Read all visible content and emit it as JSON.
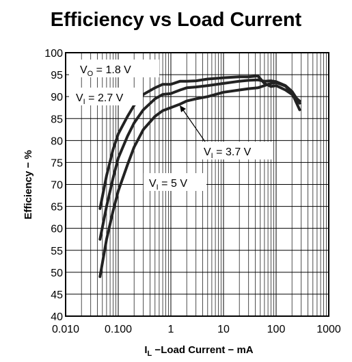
{
  "chart_data": {
    "type": "line",
    "title": "Efficiency vs Load Current",
    "xlabel": {
      "main": "I",
      "sub": "L",
      "rest": " −Load Current − mA"
    },
    "ylabel": "Efficiency − %",
    "x_scale": "log",
    "xlim": [
      0.01,
      1000
    ],
    "ylim": [
      40,
      100
    ],
    "grid": true,
    "x_ticks": [
      0.01,
      0.1,
      1,
      10,
      100,
      1000
    ],
    "x_tick_labels": [
      "0.010",
      "0.100",
      "1",
      "10",
      "100",
      "1000"
    ],
    "y_ticks": [
      40,
      45,
      50,
      55,
      60,
      65,
      70,
      75,
      80,
      85,
      90,
      95,
      100
    ],
    "y_tick_labels": [
      "40",
      "45",
      "50",
      "55",
      "60",
      "65",
      "70",
      "75",
      "80",
      "85",
      "90",
      "95",
      "100"
    ],
    "annotations": [
      {
        "main": "V",
        "sub": "O",
        "rest": " = 1.8 V"
      },
      {
        "main": "V",
        "sub": "I",
        "rest": " = 2.7 V"
      },
      {
        "main": "V",
        "sub": "I",
        "rest": " = 3.7 V"
      },
      {
        "main": "V",
        "sub": "I",
        "rest": " = 5 V"
      }
    ],
    "series": [
      {
        "x": [
          0.045,
          0.06,
          0.08,
          0.1,
          0.15,
          0.2,
          0.3,
          0.5,
          0.7,
          1,
          1.5,
          2,
          3,
          5,
          10,
          20,
          30,
          45,
          60,
          80,
          100,
          150,
          200,
          280
        ],
        "y": [
          64.5,
          72,
          78,
          81.5,
          85.5,
          88,
          90.5,
          92,
          92.8,
          92.8,
          93.5,
          93.5,
          93.6,
          94,
          94.3,
          94.5,
          94.5,
          94.7,
          93,
          92.3,
          92.5,
          91.5,
          90.5,
          89
        ]
      },
      {
        "x": [
          0.045,
          0.06,
          0.08,
          0.1,
          0.15,
          0.2,
          0.3,
          0.5,
          0.7,
          1,
          1.5,
          2,
          3,
          5,
          10,
          20,
          30,
          45,
          60,
          80,
          100,
          150,
          200,
          280
        ],
        "y": [
          57.5,
          65,
          71.5,
          76,
          81,
          84,
          87,
          89.5,
          90.5,
          90.7,
          91.5,
          92,
          92.2,
          92.5,
          93,
          93.5,
          93.7,
          93.8,
          93.5,
          93.6,
          93.4,
          92.5,
          91.2,
          88.5
        ]
      },
      {
        "x": [
          0.045,
          0.06,
          0.08,
          0.1,
          0.15,
          0.2,
          0.3,
          0.5,
          0.7,
          1,
          1.5,
          2,
          3,
          5,
          10,
          20,
          30,
          45,
          60,
          80,
          100,
          150,
          200,
          280
        ],
        "y": [
          49,
          57.5,
          64,
          68.5,
          74.5,
          78.5,
          82.5,
          85.5,
          86.8,
          87.5,
          88.3,
          89,
          89.5,
          90,
          91,
          91.5,
          91.8,
          92,
          92.5,
          93,
          93.2,
          92.4,
          90.8,
          87
        ]
      }
    ]
  }
}
